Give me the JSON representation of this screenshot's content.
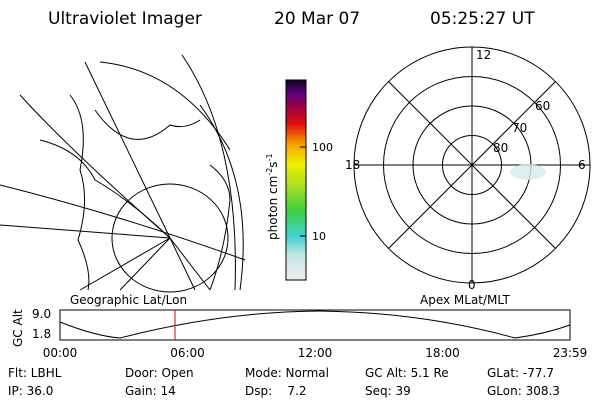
{
  "header": {
    "title": "Ultraviolet Imager",
    "date": "20 Mar 07",
    "time": "05:25:27 UT"
  },
  "colorbar": {
    "label": "photon cm",
    "exp1": "-2",
    "unit2": "s",
    "exp2": "-1",
    "ticks": [
      "100",
      "10"
    ]
  },
  "map": {
    "title": "Geographic Lat/Lon"
  },
  "polar": {
    "title": "Apex MLat/MLT",
    "mlt_labels": [
      "12",
      "18",
      "6",
      "0"
    ],
    "lat_labels": [
      "80",
      "70",
      "60"
    ]
  },
  "altitude": {
    "label": "GC Alt",
    "yticks": [
      "9.0",
      "1.8"
    ],
    "xticks": [
      "00:00",
      "06:00",
      "12:00",
      "18:00",
      "23:59"
    ]
  },
  "footer": {
    "rows": [
      [
        "Flt: LBHL",
        "Door: Open",
        "Mode: Normal",
        "GC Alt: 5.1 Re",
        "GLat: -77.7"
      ],
      [
        "IP: 36.0",
        "Gain: 14",
        "Dsp:    7.2",
        "Seq: 39",
        "GLon: 308.3"
      ]
    ]
  }
}
